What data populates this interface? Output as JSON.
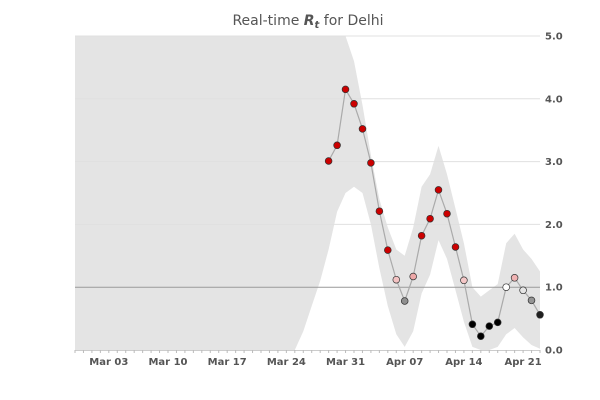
{
  "chart_data": {
    "type": "scatter",
    "title": {
      "prefix": "Real-time ",
      "symbol": "R",
      "subscript": "t",
      "suffix": " for Delhi"
    },
    "x_ticks": [
      {
        "date": "2020-03-03",
        "label": "Mar 03"
      },
      {
        "date": "2020-03-10",
        "label": "Mar 10"
      },
      {
        "date": "2020-03-17",
        "label": "Mar 17"
      },
      {
        "date": "2020-03-24",
        "label": "Mar 24"
      },
      {
        "date": "2020-03-31",
        "label": "Mar 31"
      },
      {
        "date": "2020-04-07",
        "label": "Apr 07"
      },
      {
        "date": "2020-04-14",
        "label": "Apr 14"
      },
      {
        "date": "2020-04-21",
        "label": "Apr 21"
      }
    ],
    "xlim": [
      "2020-02-28",
      "2020-04-23"
    ],
    "ylim": [
      0,
      5
    ],
    "y_ticks": [
      {
        "value": 0,
        "label": "0.0"
      },
      {
        "value": 1,
        "label": "1.0"
      },
      {
        "value": 2,
        "label": "2.0"
      },
      {
        "value": 3,
        "label": "3.0"
      },
      {
        "value": 4,
        "label": "4.0"
      },
      {
        "value": 5,
        "label": "5.0"
      }
    ],
    "y_axis_position": "right",
    "grid": "horizontal",
    "reference_line": 1.0,
    "series": [
      {
        "values": [
          {
            "x": "2020-03-29",
            "y": 3.01
          },
          {
            "x": "2020-03-30",
            "y": 3.26
          },
          {
            "x": "2020-03-31",
            "y": 4.15
          },
          {
            "x": "2020-04-01",
            "y": 3.92
          },
          {
            "x": "2020-04-02",
            "y": 3.52
          },
          {
            "x": "2020-04-03",
            "y": 2.98
          },
          {
            "x": "2020-04-04",
            "y": 2.21
          },
          {
            "x": "2020-04-05",
            "y": 1.59
          },
          {
            "x": "2020-04-06",
            "y": 1.12
          },
          {
            "x": "2020-04-07",
            "y": 0.78
          },
          {
            "x": "2020-04-08",
            "y": 1.17
          },
          {
            "x": "2020-04-09",
            "y": 1.82
          },
          {
            "x": "2020-04-10",
            "y": 2.09
          },
          {
            "x": "2020-04-11",
            "y": 2.55
          },
          {
            "x": "2020-04-12",
            "y": 2.17
          },
          {
            "x": "2020-04-13",
            "y": 1.64
          },
          {
            "x": "2020-04-14",
            "y": 1.11
          },
          {
            "x": "2020-04-15",
            "y": 0.41
          },
          {
            "x": "2020-04-16",
            "y": 0.22
          },
          {
            "x": "2020-04-17",
            "y": 0.38
          },
          {
            "x": "2020-04-18",
            "y": 0.44
          },
          {
            "x": "2020-04-19",
            "y": 1.0
          },
          {
            "x": "2020-04-20",
            "y": 1.15
          },
          {
            "x": "2020-04-21",
            "y": 0.95
          },
          {
            "x": "2020-04-22",
            "y": 0.79
          },
          {
            "x": "2020-04-23",
            "y": 0.56
          }
        ]
      }
    ],
    "credible_interval": {
      "lower": [
        {
          "x": "2020-02-28",
          "y": 0
        },
        {
          "x": "2020-03-24",
          "y": 0
        },
        {
          "x": "2020-03-25",
          "y": 0
        },
        {
          "x": "2020-03-26",
          "y": 0.3
        },
        {
          "x": "2020-03-27",
          "y": 0.7
        },
        {
          "x": "2020-03-28",
          "y": 1.1
        },
        {
          "x": "2020-03-29",
          "y": 1.6
        },
        {
          "x": "2020-03-30",
          "y": 2.2
        },
        {
          "x": "2020-03-31",
          "y": 2.5
        },
        {
          "x": "2020-04-01",
          "y": 2.6
        },
        {
          "x": "2020-04-02",
          "y": 2.5
        },
        {
          "x": "2020-04-03",
          "y": 2.0
        },
        {
          "x": "2020-04-04",
          "y": 1.3
        },
        {
          "x": "2020-04-05",
          "y": 0.7
        },
        {
          "x": "2020-04-06",
          "y": 0.25
        },
        {
          "x": "2020-04-07",
          "y": 0.05
        },
        {
          "x": "2020-04-08",
          "y": 0.3
        },
        {
          "x": "2020-04-09",
          "y": 0.9
        },
        {
          "x": "2020-04-10",
          "y": 1.2
        },
        {
          "x": "2020-04-11",
          "y": 1.75
        },
        {
          "x": "2020-04-12",
          "y": 1.45
        },
        {
          "x": "2020-04-13",
          "y": 0.95
        },
        {
          "x": "2020-04-14",
          "y": 0.45
        },
        {
          "x": "2020-04-15",
          "y": 0.05
        },
        {
          "x": "2020-04-16",
          "y": 0
        },
        {
          "x": "2020-04-17",
          "y": 0
        },
        {
          "x": "2020-04-18",
          "y": 0.05
        },
        {
          "x": "2020-04-19",
          "y": 0.25
        },
        {
          "x": "2020-04-20",
          "y": 0.35
        },
        {
          "x": "2020-04-21",
          "y": 0.2
        },
        {
          "x": "2020-04-22",
          "y": 0.08
        },
        {
          "x": "2020-04-23",
          "y": 0.02
        }
      ],
      "upper": [
        {
          "x": "2020-02-28",
          "y": 5
        },
        {
          "x": "2020-03-31",
          "y": 5
        },
        {
          "x": "2020-04-01",
          "y": 4.6
        },
        {
          "x": "2020-04-02",
          "y": 3.9
        },
        {
          "x": "2020-04-03",
          "y": 3.1
        },
        {
          "x": "2020-04-04",
          "y": 2.4
        },
        {
          "x": "2020-04-05",
          "y": 1.95
        },
        {
          "x": "2020-04-06",
          "y": 1.6
        },
        {
          "x": "2020-04-07",
          "y": 1.5
        },
        {
          "x": "2020-04-08",
          "y": 1.95
        },
        {
          "x": "2020-04-09",
          "y": 2.6
        },
        {
          "x": "2020-04-10",
          "y": 2.8
        },
        {
          "x": "2020-04-11",
          "y": 3.25
        },
        {
          "x": "2020-04-12",
          "y": 2.8
        },
        {
          "x": "2020-04-13",
          "y": 2.25
        },
        {
          "x": "2020-04-14",
          "y": 1.7
        },
        {
          "x": "2020-04-15",
          "y": 1.0
        },
        {
          "x": "2020-04-16",
          "y": 0.85
        },
        {
          "x": "2020-04-17",
          "y": 0.95
        },
        {
          "x": "2020-04-18",
          "y": 1.05
        },
        {
          "x": "2020-04-19",
          "y": 1.7
        },
        {
          "x": "2020-04-20",
          "y": 1.85
        },
        {
          "x": "2020-04-21",
          "y": 1.6
        },
        {
          "x": "2020-04-22",
          "y": 1.45
        },
        {
          "x": "2020-04-23",
          "y": 1.25
        }
      ]
    },
    "colors": {
      "band": "#e4e4e4",
      "line": "#aaaaaa",
      "grid": "#e0e0e0",
      "reference": "#999999",
      "axis": "#cccccc",
      "marker_edge": "#333333",
      "marker_high": "#cc0000",
      "marker_mid": "#ffffff",
      "marker_low": "#000000"
    },
    "color_scale": [
      {
        "value": 0,
        "color": "#000000"
      },
      {
        "value": 0.5,
        "color": "#000000"
      },
      {
        "value": 1.0,
        "color": "#ffffff"
      },
      {
        "value": 1.5,
        "color": "#cc0000"
      },
      {
        "value": 5.0,
        "color": "#cc0000"
      }
    ]
  }
}
